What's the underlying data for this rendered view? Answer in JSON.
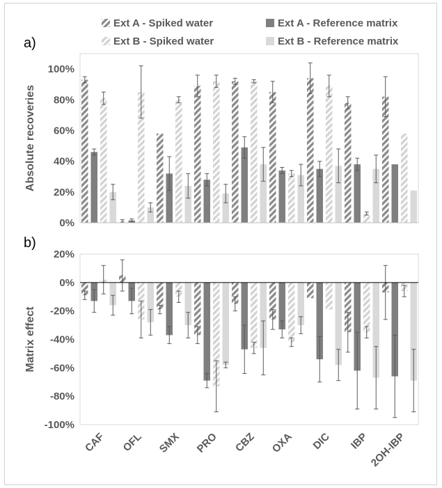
{
  "chart_data": [
    {
      "type": "bar",
      "panel_label": "a)",
      "ylabel": "Absolute recoveries",
      "ylim": [
        0,
        110
      ],
      "yticks": [
        0,
        20,
        40,
        60,
        80,
        100
      ],
      "ytick_labels": [
        "0%",
        "20%",
        "40%",
        "60%",
        "80%",
        "100%"
      ],
      "grid": false,
      "legend_placement": "top",
      "categories": [
        "CAF",
        "OFL",
        "SMX",
        "PRO",
        "CBZ",
        "OXA",
        "DIC",
        "IBP",
        "2OH-IBP"
      ],
      "series": [
        {
          "name": "Ext A - Spiked water",
          "style": "hatched",
          "color": "#8c8c8c",
          "values": [
            93,
            1,
            58,
            89,
            92,
            85,
            94,
            78,
            82
          ],
          "errors": [
            2,
            1,
            0,
            7,
            2,
            7,
            10,
            4,
            13
          ]
        },
        {
          "name": "Ext A - Reference matrix",
          "style": "solid",
          "color": "#7f7f7f",
          "values": [
            46,
            1.5,
            32,
            28,
            49,
            34,
            35,
            38,
            38
          ],
          "errors": [
            2,
            1,
            11,
            4,
            7,
            2,
            5,
            4,
            0
          ]
        },
        {
          "name": "Ext B - Spiked water",
          "style": "hatched",
          "color": "#d6d6d6",
          "values": [
            81,
            85,
            80,
            92,
            92,
            32,
            89,
            6,
            58
          ],
          "errors": [
            4,
            17,
            2,
            4,
            1,
            2,
            7,
            1,
            0
          ]
        },
        {
          "name": "Ext B - Reference matrix",
          "style": "solid",
          "color": "#d9d9d9",
          "values": [
            20,
            10,
            24,
            19,
            38,
            31,
            37,
            35,
            21
          ],
          "errors": [
            5,
            3,
            8,
            6,
            11,
            7,
            11,
            9,
            0
          ]
        }
      ]
    },
    {
      "type": "bar",
      "panel_label": "b)",
      "ylabel": "Matrix effect",
      "ylim": [
        -100,
        20
      ],
      "yticks": [
        -100,
        -80,
        -60,
        -40,
        -20,
        0,
        20
      ],
      "ytick_labels": [
        "-100%",
        "-80%",
        "-60%",
        "-40%",
        "-20%",
        "0%",
        "20%"
      ],
      "grid": false,
      "categories": [
        "CAF",
        "OFL",
        "SMX",
        "PRO",
        "CBZ",
        "OXA",
        "DIC",
        "IBP",
        "2OH-IBP"
      ],
      "series": [
        {
          "name": "Ext A - Spiked water",
          "style": "hatched",
          "color": "#8c8c8c",
          "values": [
            -9,
            5,
            -19,
            -37,
            -15,
            -26,
            -11,
            -35,
            -7
          ],
          "errors": [
            3,
            11,
            3,
            6,
            5,
            7,
            0,
            14,
            19
          ]
        },
        {
          "name": "Ext A - Reference matrix",
          "style": "solid",
          "color": "#7f7f7f",
          "values": [
            -13,
            -13,
            -37,
            -69,
            -47,
            -33,
            -54,
            -62,
            -66
          ],
          "errors": [
            8,
            9,
            6,
            5,
            17,
            6,
            16,
            27,
            29
          ]
        },
        {
          "name": "Ext B - Spiked water",
          "style": "hatched",
          "color": "#d6d6d6",
          "values": [
            2,
            -26,
            -10,
            -73,
            -46,
            -42,
            -19,
            -35,
            -6
          ],
          "errors": [
            10,
            13,
            4,
            18,
            4,
            3,
            0,
            4,
            4
          ]
        },
        {
          "name": "Ext B - Reference matrix",
          "style": "solid",
          "color": "#d9d9d9",
          "values": [
            -16,
            -28,
            -30,
            -58,
            -46,
            -30,
            -58,
            -67,
            -69
          ],
          "errors": [
            7,
            9,
            9,
            2,
            19,
            6,
            11,
            22,
            22
          ]
        }
      ]
    }
  ]
}
